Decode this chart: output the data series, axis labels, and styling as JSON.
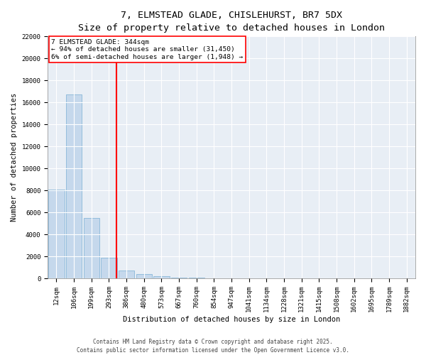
{
  "title_line1": "7, ELMSTEAD GLADE, CHISLEHURST, BR7 5DX",
  "title_line2": "Size of property relative to detached houses in London",
  "xlabel": "Distribution of detached houses by size in London",
  "ylabel": "Number of detached properties",
  "bar_color": "#c5d8ec",
  "bar_edge_color": "#7aafd4",
  "background_color": "#e8eef5",
  "grid_color": "#ffffff",
  "categories": [
    "12sqm",
    "106sqm",
    "199sqm",
    "293sqm",
    "386sqm",
    "480sqm",
    "573sqm",
    "667sqm",
    "760sqm",
    "854sqm",
    "947sqm",
    "1041sqm",
    "1134sqm",
    "1228sqm",
    "1321sqm",
    "1415sqm",
    "1508sqm",
    "1602sqm",
    "1695sqm",
    "1789sqm",
    "1882sqm"
  ],
  "values": [
    8100,
    16700,
    5500,
    1900,
    700,
    400,
    200,
    100,
    50,
    30,
    20,
    15,
    10,
    8,
    5,
    3,
    2,
    1,
    0,
    0,
    0
  ],
  "vline_x": 3.42,
  "vline_color": "red",
  "annotation_text": "7 ELMSTEAD GLADE: 344sqm\n← 94% of detached houses are smaller (31,450)\n6% of semi-detached houses are larger (1,948) →",
  "annotation_box_color": "white",
  "annotation_box_edge": "red",
  "ylim": [
    0,
    22000
  ],
  "yticks": [
    0,
    2000,
    4000,
    6000,
    8000,
    10000,
    12000,
    14000,
    16000,
    18000,
    20000,
    22000
  ],
  "footer_line1": "Contains HM Land Registry data © Crown copyright and database right 2025.",
  "footer_line2": "Contains public sector information licensed under the Open Government Licence v3.0.",
  "title_fontsize": 9.5,
  "subtitle_fontsize": 8,
  "ylabel_fontsize": 7.5,
  "xlabel_fontsize": 7.5,
  "tick_fontsize": 6.5,
  "annotation_fontsize": 6.8,
  "footer_fontsize": 5.5
}
